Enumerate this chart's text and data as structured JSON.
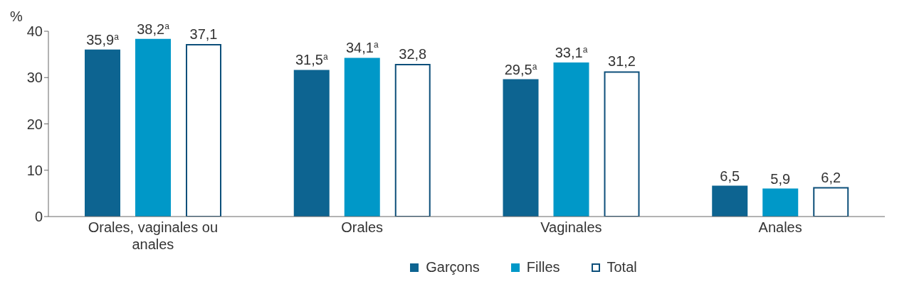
{
  "chart_data": {
    "type": "bar",
    "ylabel": "%",
    "categories": [
      "Orales, vaginales ou anales",
      "Orales",
      "Vaginales",
      "Anales"
    ],
    "series": [
      {
        "name": "Garçons",
        "color": "#0d6491",
        "values": [
          35.9,
          31.5,
          29.5,
          6.5
        ],
        "value_labels": [
          "35,9$^{a}$",
          "31,5$^{a}$",
          "29,5$^{a}$",
          "6,5"
        ]
      },
      {
        "name": "Filles",
        "color": "#0098c8",
        "values": [
          38.2,
          34.1,
          33.1,
          5.9
        ],
        "value_labels": [
          "38,2$^{a}$",
          "34,1$^{a}$",
          "33,1$^{a}$",
          "5,9"
        ]
      },
      {
        "name": "Total",
        "color": "#ffffff",
        "values": [
          37.1,
          32.8,
          31.2,
          6.2
        ],
        "value_labels": [
          "37,1",
          "32,8",
          "31,2",
          "6,2"
        ]
      }
    ],
    "ylim": [
      0,
      40
    ],
    "yticks": [
      0,
      10,
      20,
      30,
      40
    ],
    "grid": false,
    "legend": "bottom"
  }
}
